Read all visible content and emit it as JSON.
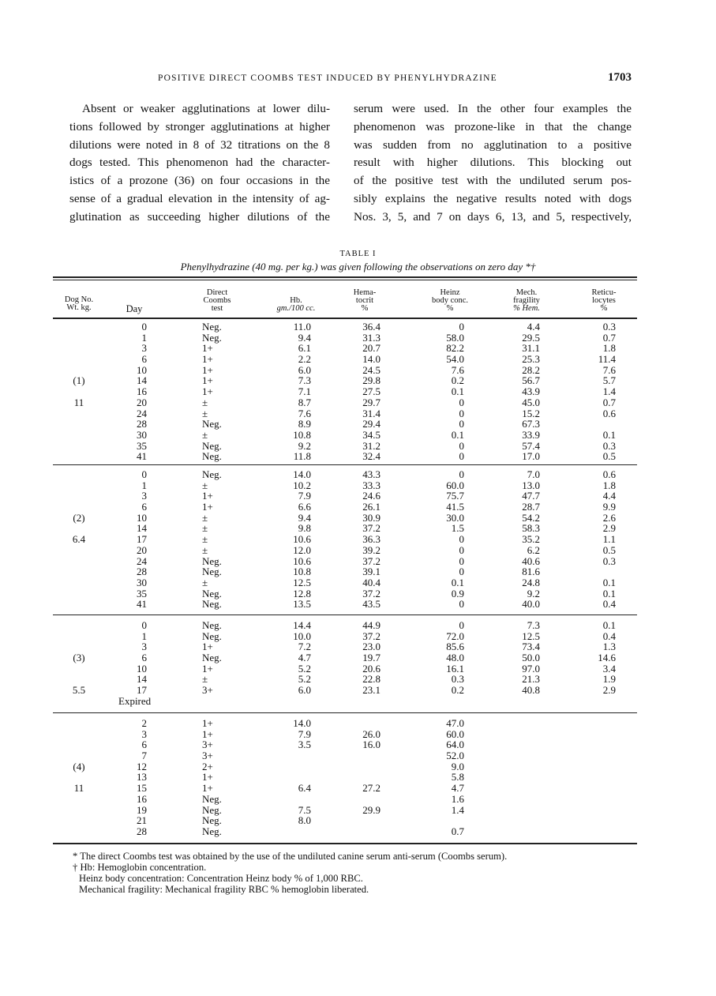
{
  "header": {
    "running_title": "POSITIVE DIRECT COOMBS TEST INDUCED BY PHENYLHYDRAZINE",
    "page_number": "1703"
  },
  "body_text": {
    "left_lines": [
      "Absent or weaker agglutinations at lower dilu-",
      "tions followed by stronger agglutinations at higher",
      "dilutions were noted in 8 of 32 titrations on the 8",
      "dogs tested. This phenomenon had the character-",
      "istics of a prozone (36) on four occasions in the",
      "sense of a gradual elevation in the intensity of ag-",
      "glutination as succeeding higher dilutions of the"
    ],
    "right_lines": [
      "serum were used. In the other four examples the",
      "phenomenon was prozone-like in that the change",
      "was sudden from no agglutination to a positive",
      "result with higher dilutions. This blocking out",
      "of the positive test with the undiluted serum pos-",
      "sibly explains the negative results noted with dogs",
      "Nos. 3, 5, and 7 on days 6, 13, and 5, respectively,"
    ]
  },
  "table": {
    "label": "TABLE I",
    "caption": "Phenylhydrazine (40 mg. per kg.) was given following the observations on zero day *†",
    "headers": {
      "dog": [
        "Dog No.",
        "Wt. kg."
      ],
      "day": [
        "Day"
      ],
      "coombs": [
        "Direct",
        "Coombs",
        "test"
      ],
      "hb": [
        "Hb.",
        "gm./100 cc."
      ],
      "hematocrit": [
        "Hema-",
        "tocrit",
        "%"
      ],
      "heinz": [
        "Heinz",
        "body conc.",
        "%"
      ],
      "mech": [
        "Mech.",
        "fragility",
        "% Hem."
      ],
      "retic": [
        "Reticu-",
        "locytes",
        "%"
      ]
    },
    "groups": [
      {
        "rows": [
          [
            "",
            "0",
            "Neg.",
            "11.0",
            "36.4",
            "0",
            "4.4",
            "0.3"
          ],
          [
            "",
            "1",
            "Neg.",
            "9.4",
            "31.3",
            "58.0",
            "29.5",
            "0.7"
          ],
          [
            "",
            "3",
            "1+",
            "6.1",
            "20.7",
            "82.2",
            "31.1",
            "1.8"
          ],
          [
            "",
            "6",
            "1+",
            "2.2",
            "14.0",
            "54.0",
            "25.3",
            "11.4"
          ],
          [
            "",
            "10",
            "1+",
            "6.0",
            "24.5",
            "7.6",
            "28.2",
            "7.6"
          ],
          [
            "(1)",
            "14",
            "1+",
            "7.3",
            "29.8",
            "0.2",
            "56.7",
            "5.7"
          ],
          [
            "",
            "16",
            "1+",
            "7.1",
            "27.5",
            "0.1",
            "43.9",
            "1.4"
          ],
          [
            "11",
            "20",
            "±",
            "8.7",
            "29.7",
            "0",
            "45.0",
            "0.7"
          ],
          [
            "",
            "24",
            "±",
            "7.6",
            "31.4",
            "0",
            "15.2",
            "0.6"
          ],
          [
            "",
            "28",
            "Neg.",
            "8.9",
            "29.4",
            "0",
            "67.3",
            ""
          ],
          [
            "",
            "30",
            "±",
            "10.8",
            "34.5",
            "0.1",
            "33.9",
            "0.1"
          ],
          [
            "",
            "35",
            "Neg.",
            "9.2",
            "31.2",
            "0",
            "57.4",
            "0.3"
          ],
          [
            "",
            "41",
            "Neg.",
            "11.8",
            "32.4",
            "0",
            "17.0",
            "0.5"
          ]
        ]
      },
      {
        "rows": [
          [
            "",
            "0",
            "Neg.",
            "14.0",
            "43.3",
            "0",
            "7.0",
            "0.6"
          ],
          [
            "",
            "1",
            "±",
            "10.2",
            "33.3",
            "60.0",
            "13.0",
            "1.8"
          ],
          [
            "",
            "3",
            "1+",
            "7.9",
            "24.6",
            "75.7",
            "47.7",
            "4.4"
          ],
          [
            "",
            "6",
            "1+",
            "6.6",
            "26.1",
            "41.5",
            "28.7",
            "9.9"
          ],
          [
            "(2)",
            "10",
            "±",
            "9.4",
            "30.9",
            "30.0",
            "54.2",
            "2.6"
          ],
          [
            "",
            "14",
            "±",
            "9.8",
            "37.2",
            "1.5",
            "58.3",
            "2.9"
          ],
          [
            "6.4",
            "17",
            "±",
            "10.6",
            "36.3",
            "0",
            "35.2",
            "1.1"
          ],
          [
            "",
            "20",
            "±",
            "12.0",
            "39.2",
            "0",
            "6.2",
            "0.5"
          ],
          [
            "",
            "24",
            "Neg.",
            "10.6",
            "37.2",
            "0",
            "40.6",
            "0.3"
          ],
          [
            "",
            "28",
            "Neg.",
            "10.8",
            "39.1",
            "0",
            "81.6",
            ""
          ],
          [
            "",
            "30",
            "±",
            "12.5",
            "40.4",
            "0.1",
            "24.8",
            "0.1"
          ],
          [
            "",
            "35",
            "Neg.",
            "12.8",
            "37.2",
            "0.9",
            "9.2",
            "0.1"
          ],
          [
            "",
            "41",
            "Neg.",
            "13.5",
            "43.5",
            "0",
            "40.0",
            "0.4"
          ]
        ]
      },
      {
        "rows": [
          [
            "",
            "0",
            "Neg.",
            "14.4",
            "44.9",
            "0",
            "7.3",
            "0.1"
          ],
          [
            "",
            "1",
            "Neg.",
            "10.0",
            "37.2",
            "72.0",
            "12.5",
            "0.4"
          ],
          [
            "",
            "3",
            "1+",
            "7.2",
            "23.0",
            "85.6",
            "73.4",
            "1.3"
          ],
          [
            "(3)",
            "6",
            "Neg.",
            "4.7",
            "19.7",
            "48.0",
            "50.0",
            "14.6"
          ],
          [
            "",
            "10",
            "1+",
            "5.2",
            "20.6",
            "16.1",
            "97.0",
            "3.4"
          ],
          [
            "",
            "14",
            "±",
            "5.2",
            "22.8",
            "0.3",
            "21.3",
            "1.9"
          ],
          [
            "5.5",
            "17",
            "3+",
            "6.0",
            "23.1",
            "0.2",
            "40.8",
            "2.9"
          ],
          [
            "",
            "Expired",
            "",
            "",
            "",
            "",
            "",
            ""
          ]
        ]
      },
      {
        "rows": [
          [
            "",
            "2",
            "1+",
            "14.0",
            "",
            "47.0",
            "",
            ""
          ],
          [
            "",
            "3",
            "1+",
            "7.9",
            "26.0",
            "60.0",
            "",
            ""
          ],
          [
            "",
            "6",
            "3+",
            "3.5",
            "16.0",
            "64.0",
            "",
            ""
          ],
          [
            "",
            "7",
            "3+",
            "",
            "",
            "52.0",
            "",
            ""
          ],
          [
            "(4)",
            "12",
            "2+",
            "",
            "",
            "9.0",
            "",
            ""
          ],
          [
            "",
            "13",
            "1+",
            "",
            "",
            "5.8",
            "",
            ""
          ],
          [
            "11",
            "15",
            "1+",
            "6.4",
            "27.2",
            "4.7",
            "",
            ""
          ],
          [
            "",
            "16",
            "Neg.",
            "",
            "",
            "1.6",
            "",
            ""
          ],
          [
            "",
            "19",
            "Neg.",
            "7.5",
            "29.9",
            "1.4",
            "",
            ""
          ],
          [
            "",
            "21",
            "Neg.",
            "8.0",
            "",
            "",
            "",
            ""
          ],
          [
            "",
            "28",
            "Neg.",
            "",
            "",
            "0.7",
            "",
            ""
          ]
        ]
      }
    ],
    "footnotes": [
      "* The direct Coombs test was obtained by the use of the undiluted canine serum anti-serum (Coombs serum).",
      "† Hb: Hemoglobin concentration.",
      "Heinz body concentration: Concentration Heinz body % of 1,000 RBC.",
      "Mechanical fragility: Mechanical fragility RBC % hemoglobin liberated."
    ]
  }
}
